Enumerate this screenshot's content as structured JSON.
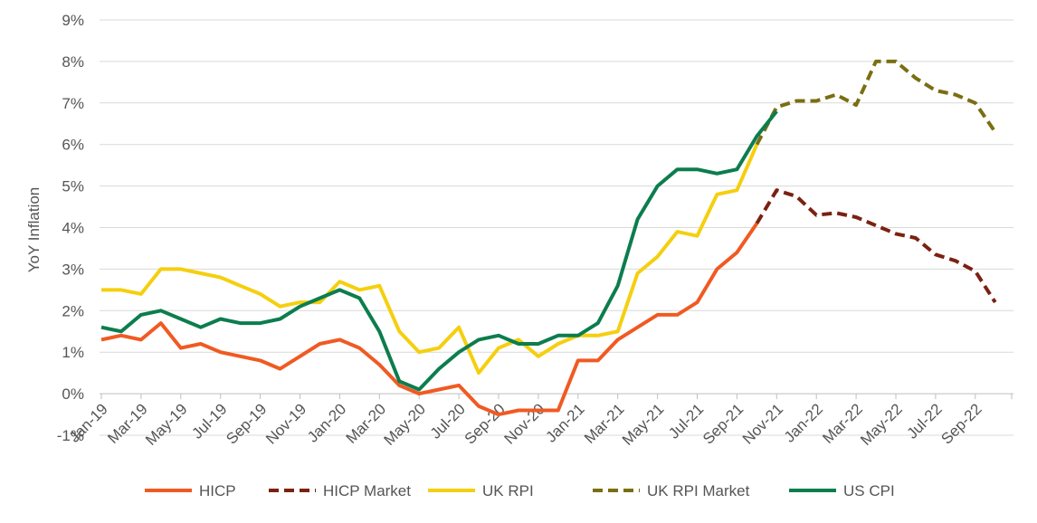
{
  "chart_data": {
    "type": "line",
    "title": "",
    "xlabel": "",
    "ylabel": "YoY Inflation",
    "ylim": [
      -1,
      9
    ],
    "y_ticks": [
      "-1%",
      "0%",
      "1%",
      "2%",
      "3%",
      "4%",
      "5%",
      "6%",
      "7%",
      "8%",
      "9%"
    ],
    "x_tick_labels": [
      "Jan-19",
      "Mar-19",
      "May-19",
      "Jul-19",
      "Sep-19",
      "Nov-19",
      "Jan-20",
      "Mar-20",
      "May-20",
      "Jul-20",
      "Sep-20",
      "Nov-20",
      "Jan-21",
      "Mar-21",
      "May-21",
      "Jul-21",
      "Sep-21",
      "Nov-21",
      "Jan-22",
      "Mar-22",
      "May-22",
      "Jul-22",
      "Sep-22"
    ],
    "x_start": "Jan-19",
    "x_end": "Nov-22",
    "grid": true,
    "legend_position": "bottom",
    "series": [
      {
        "name": "HICP",
        "color": "#f05a22",
        "style": "solid",
        "start": "Jan-19",
        "values": [
          1.3,
          1.4,
          1.3,
          1.7,
          1.1,
          1.2,
          1.0,
          0.9,
          0.8,
          0.6,
          0.9,
          1.2,
          1.3,
          1.1,
          0.7,
          0.2,
          0.0,
          0.1,
          0.2,
          -0.3,
          -0.5,
          -0.4,
          -0.4,
          -0.4,
          0.8,
          0.8,
          1.3,
          1.6,
          1.9,
          1.9,
          2.2,
          3.0,
          3.4,
          4.1
        ]
      },
      {
        "name": "HICP Market",
        "color": "#7b2112",
        "style": "dashed",
        "start": "Oct-21",
        "values": [
          4.1,
          4.9,
          4.75,
          4.3,
          4.35,
          4.25,
          4.05,
          3.85,
          3.75,
          3.35,
          3.2,
          2.95,
          2.2
        ]
      },
      {
        "name": "UK RPI",
        "color": "#f5cf0f",
        "style": "solid",
        "start": "Jan-19",
        "values": [
          2.5,
          2.5,
          2.4,
          3.0,
          3.0,
          2.9,
          2.8,
          2.6,
          2.4,
          2.1,
          2.2,
          2.2,
          2.7,
          2.5,
          2.6,
          1.5,
          1.0,
          1.1,
          1.6,
          0.5,
          1.1,
          1.3,
          0.9,
          1.2,
          1.4,
          1.4,
          1.5,
          2.9,
          3.3,
          3.9,
          3.8,
          4.8,
          4.9,
          6.0
        ]
      },
      {
        "name": "UK RPI Market",
        "color": "#7b6e12",
        "style": "dashed",
        "start": "Oct-21",
        "values": [
          6.0,
          6.9,
          7.05,
          7.05,
          7.2,
          6.95,
          8.0,
          8.0,
          7.6,
          7.3,
          7.2,
          7.0,
          6.3
        ]
      },
      {
        "name": "US CPI",
        "color": "#0c7d4e",
        "style": "solid",
        "start": "Jan-19",
        "values": [
          1.6,
          1.5,
          1.9,
          2.0,
          1.8,
          1.6,
          1.8,
          1.7,
          1.7,
          1.8,
          2.1,
          2.3,
          2.5,
          2.3,
          1.5,
          0.3,
          0.1,
          0.6,
          1.0,
          1.3,
          1.4,
          1.2,
          1.2,
          1.4,
          1.4,
          1.7,
          2.6,
          4.2,
          5.0,
          5.4,
          5.4,
          5.3,
          5.4,
          6.2,
          6.8
        ]
      }
    ]
  }
}
